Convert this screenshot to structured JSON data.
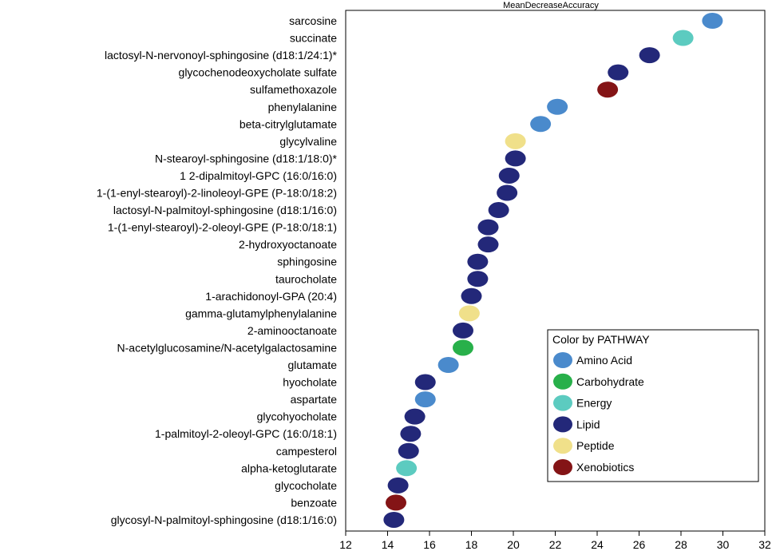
{
  "chart_data": {
    "type": "scatter",
    "title": "MeanDecreaseAccuracy",
    "xlabel": "",
    "ylabel": "",
    "xlim": [
      12,
      32
    ],
    "xticks": [
      12,
      14,
      16,
      18,
      20,
      22,
      24,
      26,
      28,
      30,
      32
    ],
    "legend": {
      "title": "Color by PATHWAY",
      "placement": "bottom-right",
      "entries": [
        {
          "name": "Amino Acid",
          "color": "#4a8acc"
        },
        {
          "name": "Carbohydrate",
          "color": "#28b04a"
        },
        {
          "name": "Energy",
          "color": "#5ccbc0"
        },
        {
          "name": "Lipid",
          "color": "#232879"
        },
        {
          "name": "Peptide",
          "color": "#f0e08a"
        },
        {
          "name": "Xenobiotics",
          "color": "#841416"
        }
      ]
    },
    "points": [
      {
        "label": "sarcosine",
        "value": 29.5,
        "pathway": "Amino Acid"
      },
      {
        "label": "succinate",
        "value": 28.1,
        "pathway": "Energy"
      },
      {
        "label": "lactosyl-N-nervonoyl-sphingosine (d18:1/24:1)*",
        "value": 26.5,
        "pathway": "Lipid"
      },
      {
        "label": "glycochenodeoxycholate sulfate",
        "value": 25.0,
        "pathway": "Lipid"
      },
      {
        "label": "sulfamethoxazole",
        "value": 24.5,
        "pathway": "Xenobiotics"
      },
      {
        "label": "phenylalanine",
        "value": 22.1,
        "pathway": "Amino Acid"
      },
      {
        "label": "beta-citrylglutamate",
        "value": 21.3,
        "pathway": "Amino Acid"
      },
      {
        "label": "glycylvaline",
        "value": 20.1,
        "pathway": "Peptide"
      },
      {
        "label": "N-stearoyl-sphingosine (d18:1/18:0)*",
        "value": 20.1,
        "pathway": "Lipid"
      },
      {
        "label": "1 2-dipalmitoyl-GPC (16:0/16:0)",
        "value": 19.8,
        "pathway": "Lipid"
      },
      {
        "label": "1-(1-enyl-stearoyl)-2-linoleoyl-GPE (P-18:0/18:2)",
        "value": 19.7,
        "pathway": "Lipid"
      },
      {
        "label": "lactosyl-N-palmitoyl-sphingosine (d18:1/16:0)",
        "value": 19.3,
        "pathway": "Lipid"
      },
      {
        "label": "1-(1-enyl-stearoyl)-2-oleoyl-GPE (P-18:0/18:1)",
        "value": 18.8,
        "pathway": "Lipid"
      },
      {
        "label": "2-hydroxyoctanoate",
        "value": 18.8,
        "pathway": "Lipid"
      },
      {
        "label": "sphingosine",
        "value": 18.3,
        "pathway": "Lipid"
      },
      {
        "label": "taurocholate",
        "value": 18.3,
        "pathway": "Lipid"
      },
      {
        "label": "1-arachidonoyl-GPA (20:4)",
        "value": 18.0,
        "pathway": "Lipid"
      },
      {
        "label": "gamma-glutamylphenylalanine",
        "value": 17.9,
        "pathway": "Peptide"
      },
      {
        "label": "2-aminooctanoate",
        "value": 17.6,
        "pathway": "Lipid"
      },
      {
        "label": "N-acetylglucosamine/N-acetylgalactosamine",
        "value": 17.6,
        "pathway": "Carbohydrate"
      },
      {
        "label": "glutamate",
        "value": 16.9,
        "pathway": "Amino Acid"
      },
      {
        "label": "hyocholate",
        "value": 15.8,
        "pathway": "Lipid"
      },
      {
        "label": "aspartate",
        "value": 15.8,
        "pathway": "Amino Acid"
      },
      {
        "label": "glycohyocholate",
        "value": 15.3,
        "pathway": "Lipid"
      },
      {
        "label": "1-palmitoyl-2-oleoyl-GPC (16:0/18:1)",
        "value": 15.1,
        "pathway": "Lipid"
      },
      {
        "label": "campesterol",
        "value": 15.0,
        "pathway": "Lipid"
      },
      {
        "label": "alpha-ketoglutarate",
        "value": 14.9,
        "pathway": "Energy"
      },
      {
        "label": "glycocholate",
        "value": 14.5,
        "pathway": "Lipid"
      },
      {
        "label": "benzoate",
        "value": 14.4,
        "pathway": "Xenobiotics"
      },
      {
        "label": "glycosyl-N-palmitoyl-sphingosine (d18:1/16:0)",
        "value": 14.3,
        "pathway": "Lipid"
      }
    ]
  }
}
